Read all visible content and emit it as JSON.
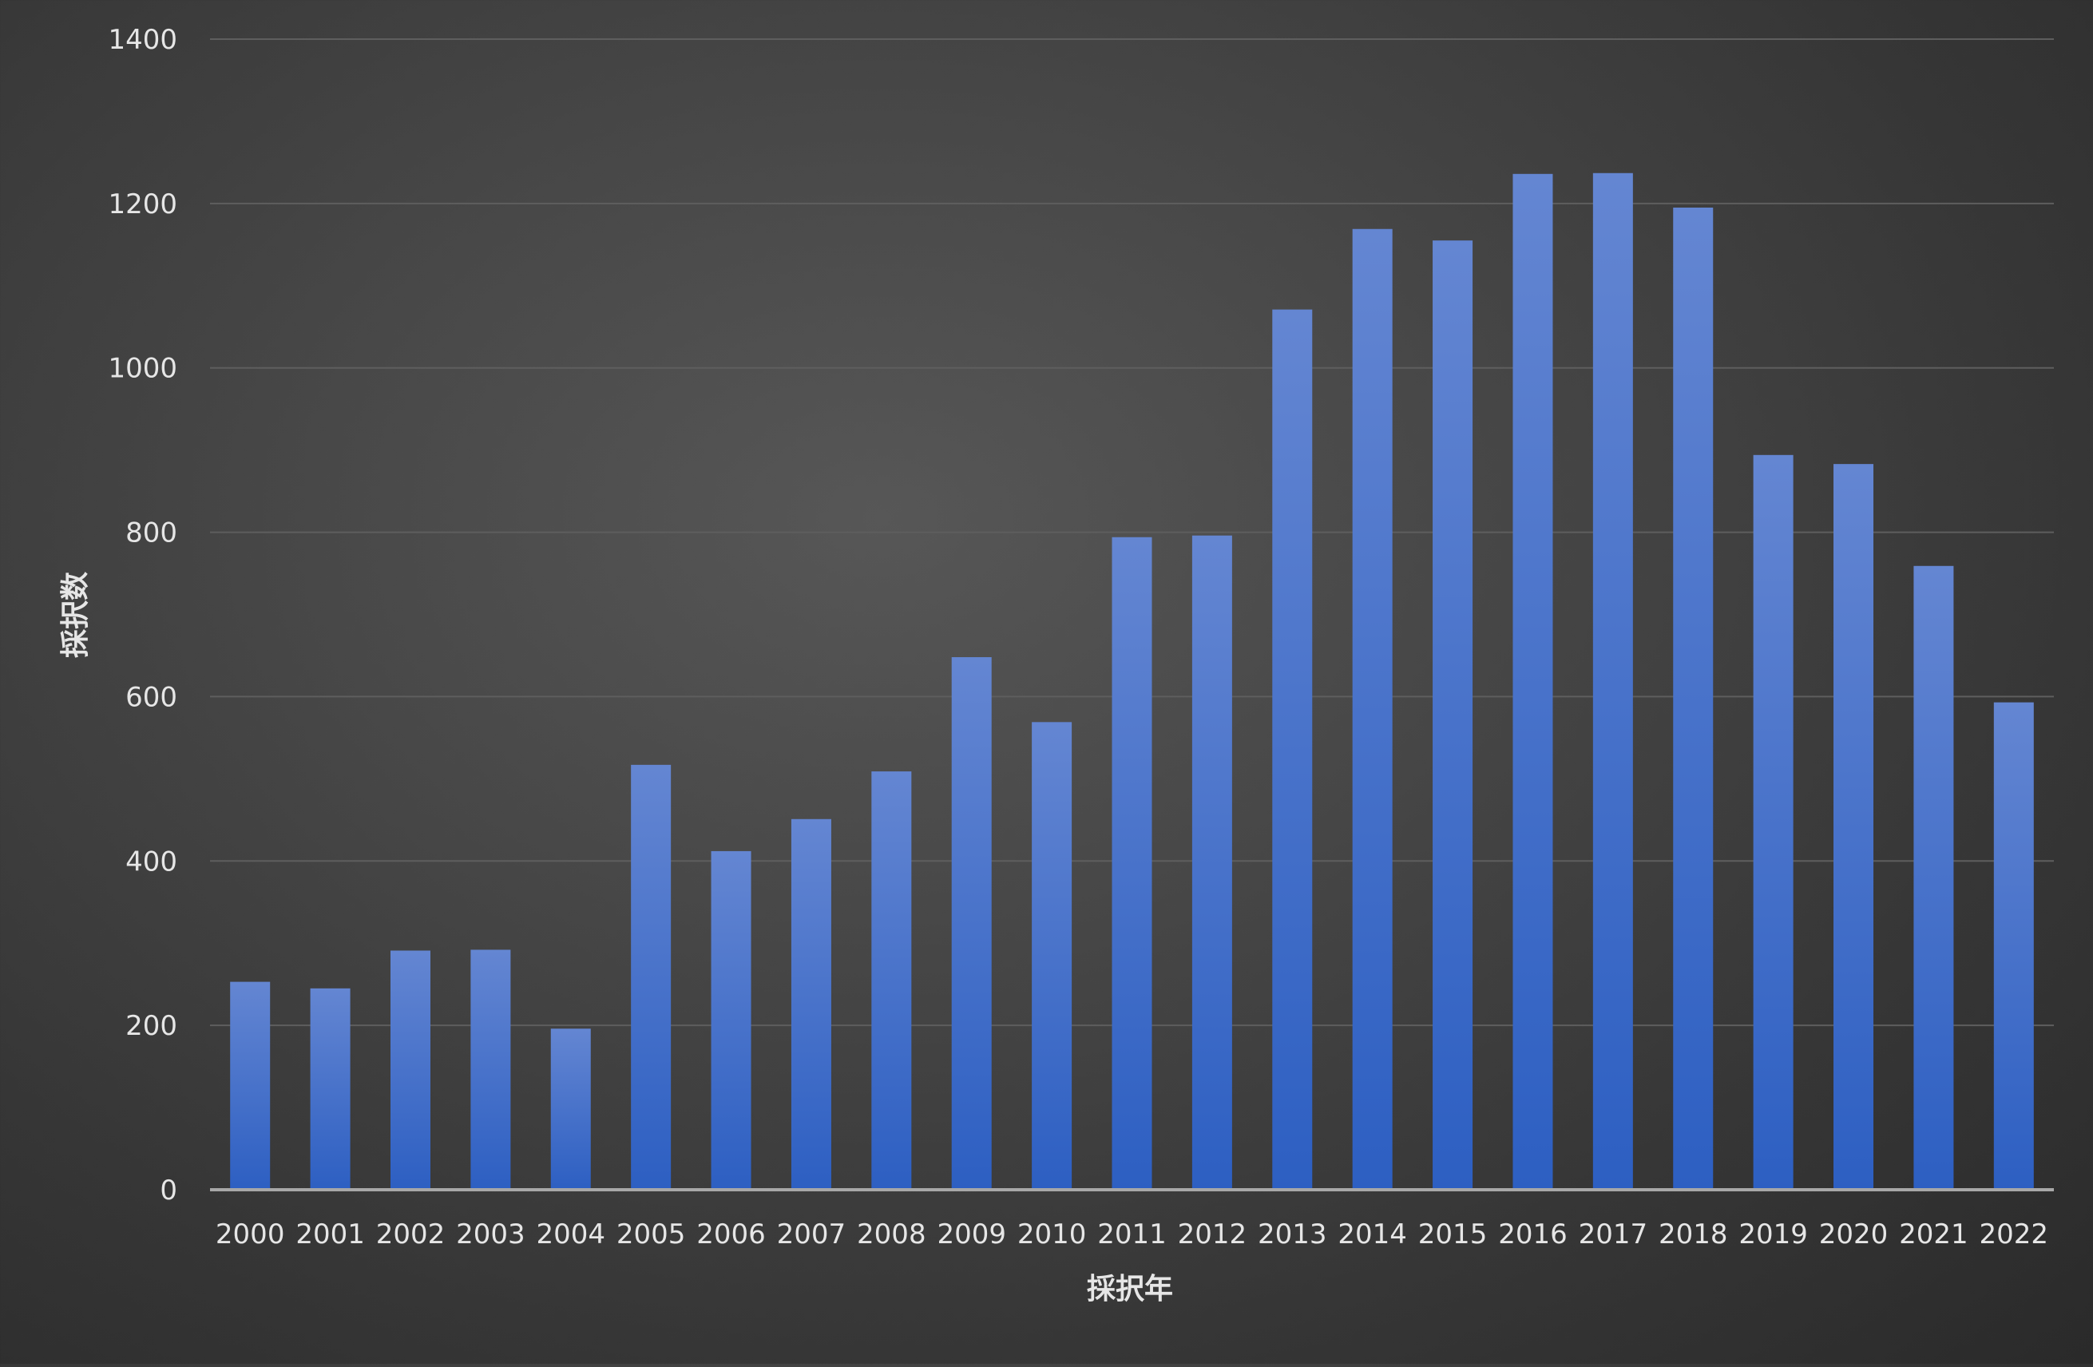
{
  "chart_data": {
    "type": "bar",
    "title": "",
    "xlabel": "採択年",
    "ylabel": "採択数",
    "ylim": [
      0,
      1400
    ],
    "yticks": [
      0,
      200,
      400,
      600,
      800,
      1000,
      1200,
      1400
    ],
    "grid": true,
    "legend": "none",
    "categories": [
      "2000",
      "2001",
      "2002",
      "2003",
      "2004",
      "2005",
      "2006",
      "2007",
      "2008",
      "2009",
      "2010",
      "2011",
      "2012",
      "2013",
      "2014",
      "2015",
      "2016",
      "2017",
      "2018",
      "2019",
      "2020",
      "2021",
      "2022"
    ],
    "values": [
      253,
      245,
      291,
      292,
      196,
      517,
      412,
      451,
      509,
      648,
      569,
      794,
      796,
      1071,
      1169,
      1155,
      1236,
      1237,
      1195,
      894,
      883,
      759,
      593
    ],
    "colors": {
      "bar_top": "#6486d2",
      "bar_bottom": "#2d5fc2",
      "grid": "#5e5e5e",
      "axis": "#a8a8a8",
      "text": "#e6e6e6"
    }
  }
}
